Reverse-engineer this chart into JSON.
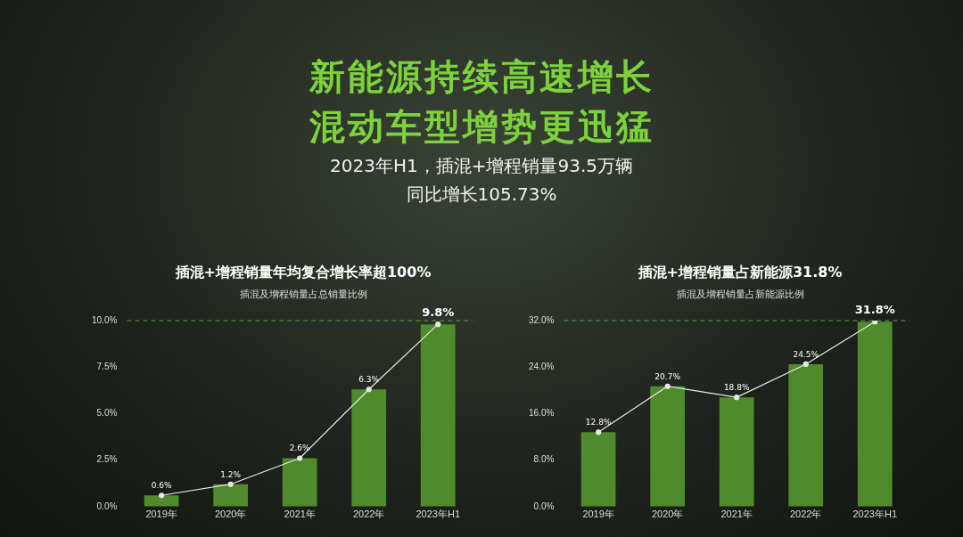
{
  "chart_data": [
    {
      "type": "bar",
      "title": "插混+增程销量年均复合增长率超100%",
      "subtitle": "插混及增程销量占总销量比例",
      "annotations": [
        "新能源持续高速增长",
        "混动车型增势更迅猛",
        "2023年H1，插混+增程销量93.5万辆",
        "同比增长105.73%"
      ],
      "categories": [
        "2019年",
        "2020年",
        "2021年",
        "2022年",
        "2023年H1"
      ],
      "series": [
        {
          "color": "#4f8a2b",
          "values": [
            0.6,
            1.2,
            2.6,
            6.3,
            9.8
          ]
        },
        {
          "type": "line",
          "color": "#e8e8e8",
          "values": [
            0.6,
            1.2,
            2.6,
            6.3,
            9.8
          ],
          "value_labels": [
            "0.6%",
            "1.2%",
            "2.6%",
            "6.3%",
            "9.8%"
          ]
        }
      ],
      "ylim": [
        0,
        10
      ],
      "yticks": [
        {
          "value": 0,
          "label": "0.0%"
        },
        {
          "value": 2.5,
          "label": "2.5%"
        },
        {
          "value": 5,
          "label": "5.0%"
        },
        {
          "value": 7.5,
          "label": "7.5%"
        },
        {
          "value": 10,
          "label": "10.0%"
        }
      ],
      "ref_lines": [
        {
          "axis": "y",
          "value": 10,
          "color": "#6a9a4a",
          "line_style": "dashed"
        }
      ],
      "grid": false,
      "legend": false,
      "marker": "circle"
    },
    {
      "type": "bar",
      "title": "插混+增程销量占新能源31.8%",
      "subtitle": "插混及增程销量占新能源比例",
      "categories": [
        "2019年",
        "2020年",
        "2021年",
        "2022年",
        "2023年H1"
      ],
      "series": [
        {
          "color": "#4f8a2b",
          "values": [
            12.8,
            20.7,
            18.8,
            24.5,
            31.8
          ]
        },
        {
          "type": "line",
          "color": "#e8e8e8",
          "values": [
            12.8,
            20.7,
            18.8,
            24.5,
            31.8
          ],
          "value_labels": [
            "12.8%",
            "20.7%",
            "18.8%",
            "24.5%",
            "31.8%"
          ]
        }
      ],
      "ylim": [
        0,
        32
      ],
      "yticks": [
        {
          "value": 0,
          "label": "0.0%"
        },
        {
          "value": 8,
          "label": "8.0%"
        },
        {
          "value": 16,
          "label": "16.0%"
        },
        {
          "value": 24,
          "label": "24.0%"
        },
        {
          "value": 32,
          "label": "32.0%"
        }
      ],
      "ref_lines": [
        {
          "axis": "y",
          "value": 32,
          "color": "#6a9a4a",
          "line_style": "dashed"
        }
      ],
      "grid": false,
      "legend": false,
      "marker": "circle"
    }
  ]
}
